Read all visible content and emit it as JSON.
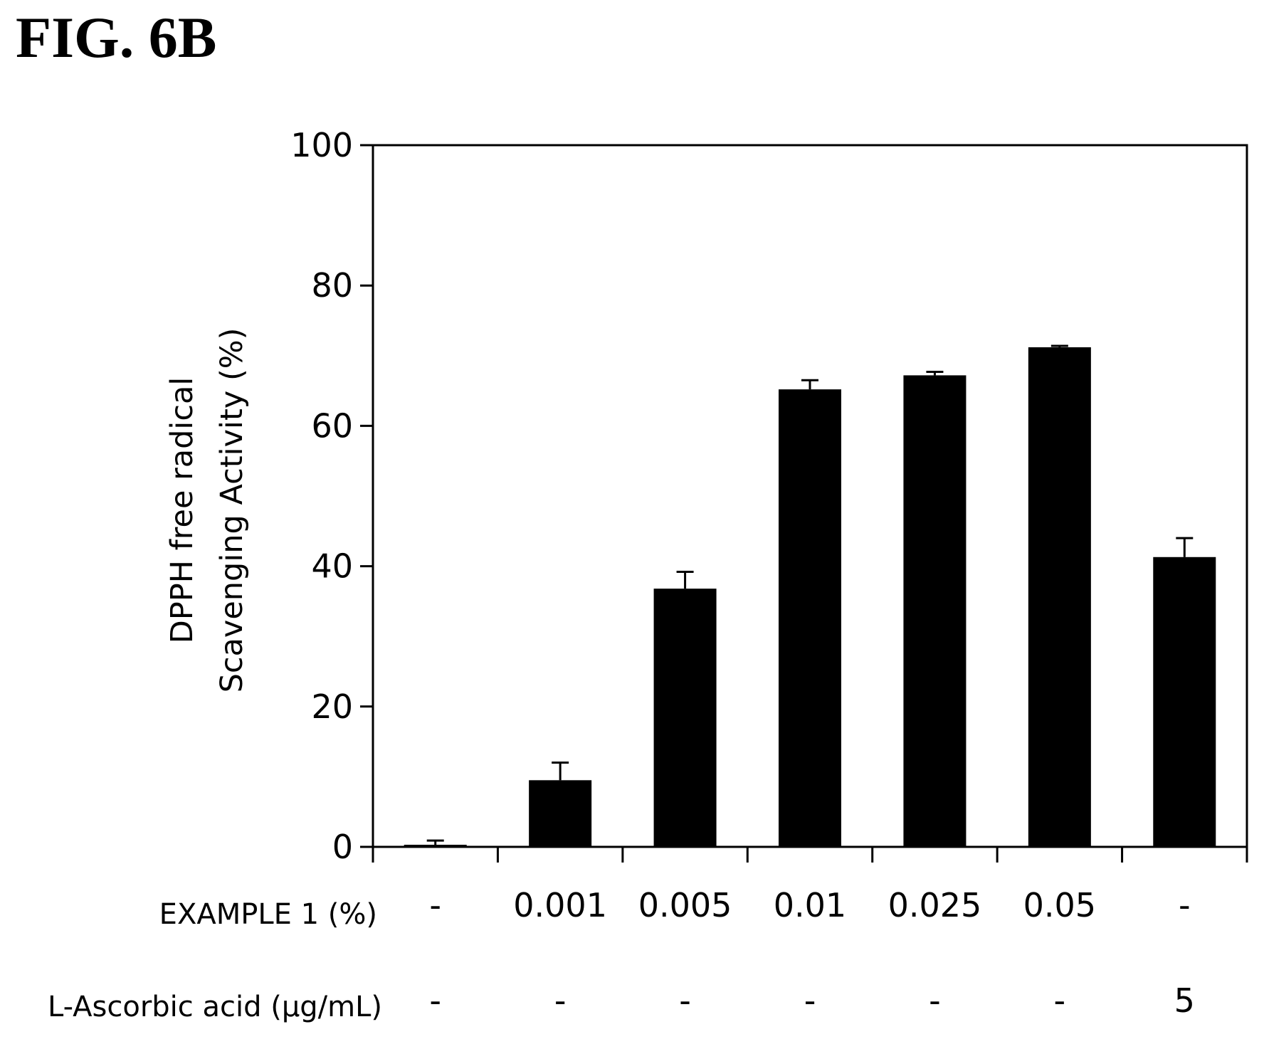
{
  "figure_label": "FIG. 6B",
  "chart_data": {
    "type": "bar",
    "ylabel_lines": [
      "DPPH free radical",
      "Scavenging Activity (%)"
    ],
    "ylim": [
      0,
      100
    ],
    "yticks": [
      "0",
      "20",
      "40",
      "60",
      "80",
      "100"
    ],
    "grid": false,
    "colors": {
      "bar": "#000000"
    },
    "values": [
      0.3,
      9.5,
      36.8,
      65.2,
      67.2,
      71.2,
      41.3
    ],
    "errors": [
      0.6,
      2.5,
      2.4,
      1.3,
      0.5,
      0.2,
      2.7
    ],
    "rows": [
      {
        "label": "EXAMPLE 1  (%)",
        "values": [
          "-",
          "0.001",
          "0.005",
          "0.01",
          "0.025",
          "0.05",
          "-"
        ]
      },
      {
        "label": "L-Ascorbic acid (µg/mL)",
        "values": [
          "-",
          "-",
          "-",
          "-",
          "-",
          "-",
          "5"
        ]
      }
    ]
  }
}
